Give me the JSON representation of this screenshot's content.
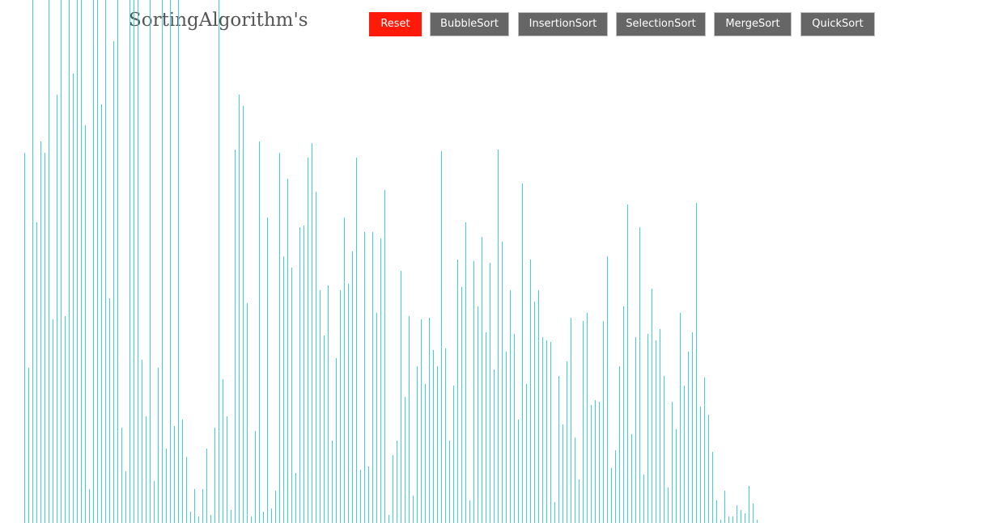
{
  "header": {
    "title": "SortingAlgorithm's"
  },
  "toolbar": {
    "buttons": [
      {
        "id": "reset",
        "label": "Reset"
      },
      {
        "id": "bubble",
        "label": "BubbleSort"
      },
      {
        "id": "insertion",
        "label": "InsertionSort"
      },
      {
        "id": "selection",
        "label": "SelectionSort"
      },
      {
        "id": "merge",
        "label": "MergeSort"
      },
      {
        "id": "quick",
        "label": "QuickSort"
      }
    ]
  },
  "colors": {
    "bar": "#3fd0dc",
    "reset_button": "#ff1a0a",
    "button": "#666666",
    "title": "#555555"
  },
  "array": {
    "values": [
      229,
      96,
      445,
      186,
      236,
      229,
      355,
      126,
      265,
      440,
      128,
      428,
      278,
      513,
      494,
      246,
      21,
      404,
      406,
      259,
      341,
      139,
      298,
      371,
      59,
      32,
      374,
      374,
      418,
      101,
      66,
      417,
      26,
      96,
      474,
      46,
      470,
      60,
      459,
      64,
      41,
      7,
      21,
      4,
      21,
      46,
      5,
      59,
      475,
      89,
      66,
      8,
      231,
      265,
      258,
      136,
      4,
      57,
      236,
      7,
      189,
      9,
      20,
      229,
      165,
      213,
      158,
      31,
      183,
      184,
      226,
      235,
      205,
      144,
      116,
      147,
      51,
      102,
      144,
      189,
      148,
      168,
      226,
      33,
      180,
      35,
      180,
      130,
      176,
      206,
      5,
      42,
      51,
      156,
      78,
      128,
      17,
      97,
      126,
      86,
      127,
      107,
      97,
      230,
      108,
      51,
      85,
      163,
      146,
      186,
      14,
      162,
      134,
      177,
      118,
      161,
      95,
      231,
      174,
      106,
      144,
      117,
      64,
      210,
      86,
      163,
      137,
      144,
      115,
      113,
      112,
      13,
      91,
      61,
      100,
      127,
      53,
      27,
      125,
      130,
      73,
      76,
      75,
      125,
      165,
      34,
      45,
      97,
      134,
      197,
      55,
      115,
      183,
      30,
      117,
      145,
      113,
      120,
      91,
      22,
      75,
      58,
      130,
      85,
      106,
      118,
      198,
      72,
      90,
      67,
      44,
      14,
      2,
      20,
      4,
      4,
      11,
      8,
      6,
      23,
      12,
      2
    ]
  }
}
